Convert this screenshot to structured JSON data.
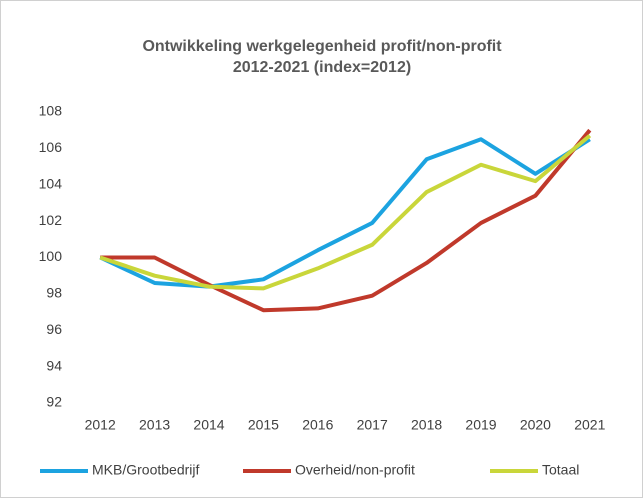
{
  "chart_data": {
    "type": "line",
    "title": [
      "Ontwikkeling werkgelegenheid profit/non-profit",
      "2012-2021 (index=2012)"
    ],
    "categories": [
      "2012",
      "2013",
      "2014",
      "2015",
      "2016",
      "2017",
      "2018",
      "2019",
      "2020",
      "2021"
    ],
    "series": [
      {
        "name": "MKB/Grootbedrijf",
        "color": "#1ca3e0",
        "values": [
          100,
          98.6,
          98.4,
          98.8,
          100.4,
          101.9,
          105.4,
          106.5,
          104.6,
          106.5
        ]
      },
      {
        "name": "Overheid/non-profit",
        "color": "#c0392b",
        "values": [
          100,
          100.0,
          98.5,
          97.1,
          97.2,
          97.9,
          99.7,
          101.9,
          103.4,
          107.0
        ]
      },
      {
        "name": "Totaal",
        "color": "#c9d63a",
        "values": [
          100,
          99.0,
          98.4,
          98.3,
          99.4,
          100.7,
          103.6,
          105.1,
          104.2,
          106.7
        ]
      }
    ],
    "ylim": [
      92,
      108
    ],
    "yticks": [
      92,
      94,
      96,
      98,
      100,
      102,
      104,
      106,
      108
    ],
    "grid": false
  }
}
